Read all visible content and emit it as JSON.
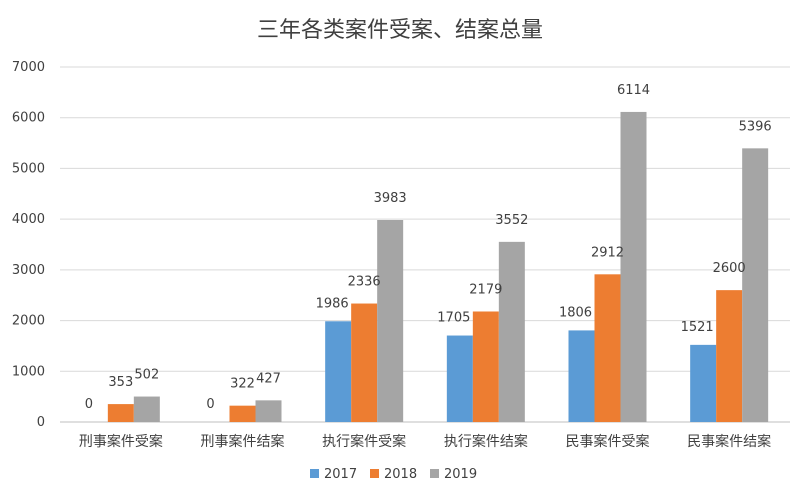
{
  "chart_data": {
    "type": "bar",
    "title": "三年各类案件受案、结案总量",
    "categories": [
      "刑事案件受案",
      "刑事案件结案",
      "执行案件受案",
      "执行案件结案",
      "民事案件受案",
      "民事案件结案"
    ],
    "series": [
      {
        "name": "2017",
        "color": "#5b9bd5",
        "values": [
          0,
          0,
          1986,
          1705,
          1806,
          1521
        ]
      },
      {
        "name": "2018",
        "color": "#ed7d31",
        "values": [
          353,
          322,
          2336,
          2179,
          2912,
          2600
        ]
      },
      {
        "name": "2019",
        "color": "#a5a5a5",
        "values": [
          502,
          427,
          3983,
          3552,
          6114,
          5396
        ]
      }
    ],
    "ylim": [
      0,
      7000
    ],
    "yticks": [
      "0",
      "1000",
      "2000",
      "3000",
      "4000",
      "5000",
      "6000",
      "7000"
    ],
    "grid": true,
    "legend_position": "bottom"
  }
}
